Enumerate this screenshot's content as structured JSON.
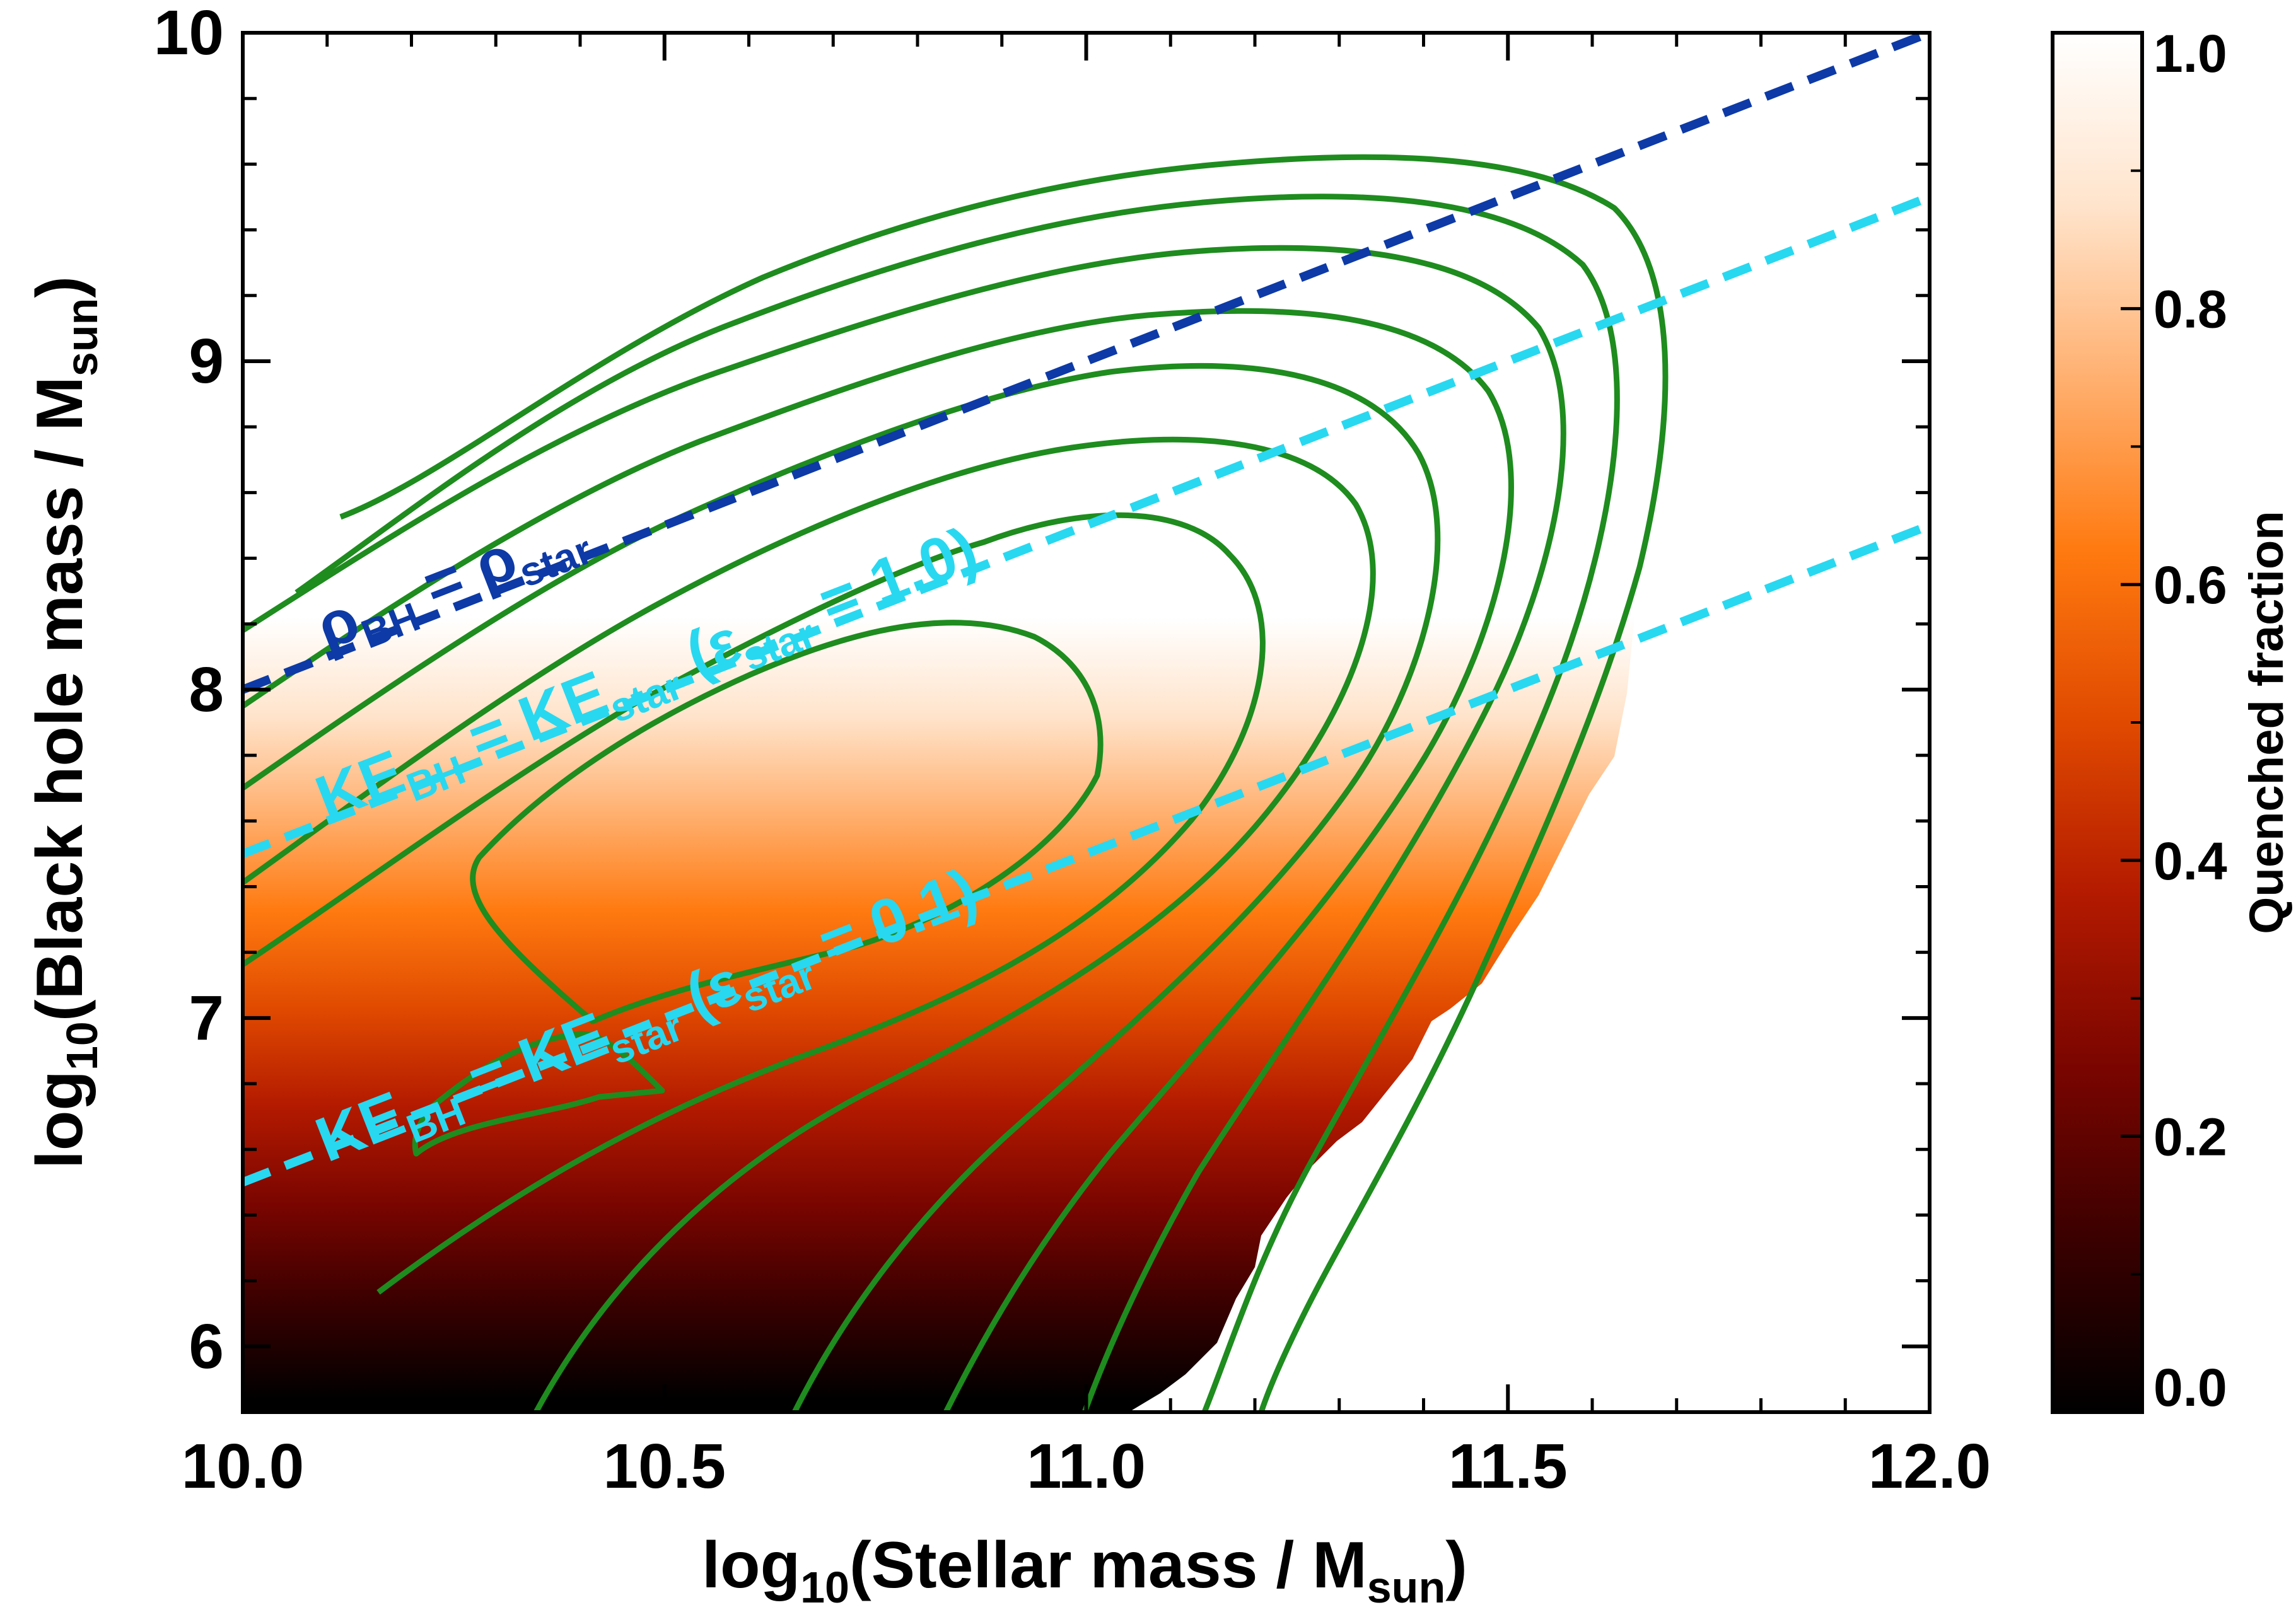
{
  "chart_data": {
    "type": "heatmap",
    "title": "",
    "xlabel": {
      "prefix": "log",
      "sub": "10",
      "main": "(Stellar mass / M",
      "unit_sub": "sun",
      "close": ")"
    },
    "ylabel": {
      "prefix": "log",
      "sub": "10",
      "main": "(Black hole mass / M",
      "unit_sub": "sun",
      "close": ")"
    },
    "xlim": [
      10.0,
      12.0
    ],
    "ylim": [
      5.8,
      10.0
    ],
    "x_ticks": [
      10.0,
      10.5,
      11.0,
      11.5,
      12.0
    ],
    "x_tick_labels": [
      "10.0",
      "10.5",
      "11.0",
      "11.5",
      "12.0"
    ],
    "y_ticks": [
      6,
      7,
      8,
      9,
      10
    ],
    "y_tick_labels": [
      "6",
      "7",
      "8",
      "9",
      "10"
    ],
    "colorbar": {
      "label": "Quenched fraction",
      "range": [
        0.0,
        1.0
      ],
      "ticks": [
        0.0,
        0.2,
        0.4,
        0.6,
        0.8,
        1.0
      ],
      "tick_labels": [
        "0.0",
        "0.2",
        "0.4",
        "0.6",
        "0.8",
        "1.0"
      ],
      "colormap": [
        "#000000",
        "#3a0000",
        "#7a0500",
        "#b31a00",
        "#e04a00",
        "#ff7a10",
        "#ffb070",
        "#ffe4cc",
        "#ffffff"
      ]
    },
    "contour_color": "#1e8c1e",
    "reference_lines": [
      {
        "name": "rho-bh-equals-rho-star",
        "color": "#0d3aa6",
        "x": [
          10.0,
          12.0
        ],
        "y": [
          8.0,
          10.0
        ],
        "label": {
          "a": "ρ",
          "a_sub": "BH",
          "eq": " = ",
          "b": "ρ",
          "b_sub": "star",
          "tail": ""
        }
      },
      {
        "name": "ke-bh-equals-ke-star-eps-1",
        "color": "#28d8f0",
        "x": [
          10.0,
          12.0
        ],
        "y": [
          7.5,
          9.5
        ],
        "label": {
          "a": "KE",
          "a_sub": "BH",
          "eq": " = ",
          "b": "KE",
          "b_sub": "star",
          "eps": "ε",
          "eps_sub": "star",
          "tail": " = 1.0)",
          "open": " ("
        }
      },
      {
        "name": "ke-bh-equals-ke-star-eps-0.1",
        "color": "#28d8f0",
        "x": [
          10.0,
          12.0
        ],
        "y": [
          6.5,
          8.5
        ],
        "label": {
          "a": "KE",
          "a_sub": "BH",
          "eq": " = ",
          "b": "KE",
          "b_sub": "star",
          "eps": "ε",
          "eps_sub": "star",
          "tail": " = 0.1)",
          "open": " ("
        }
      }
    ]
  }
}
